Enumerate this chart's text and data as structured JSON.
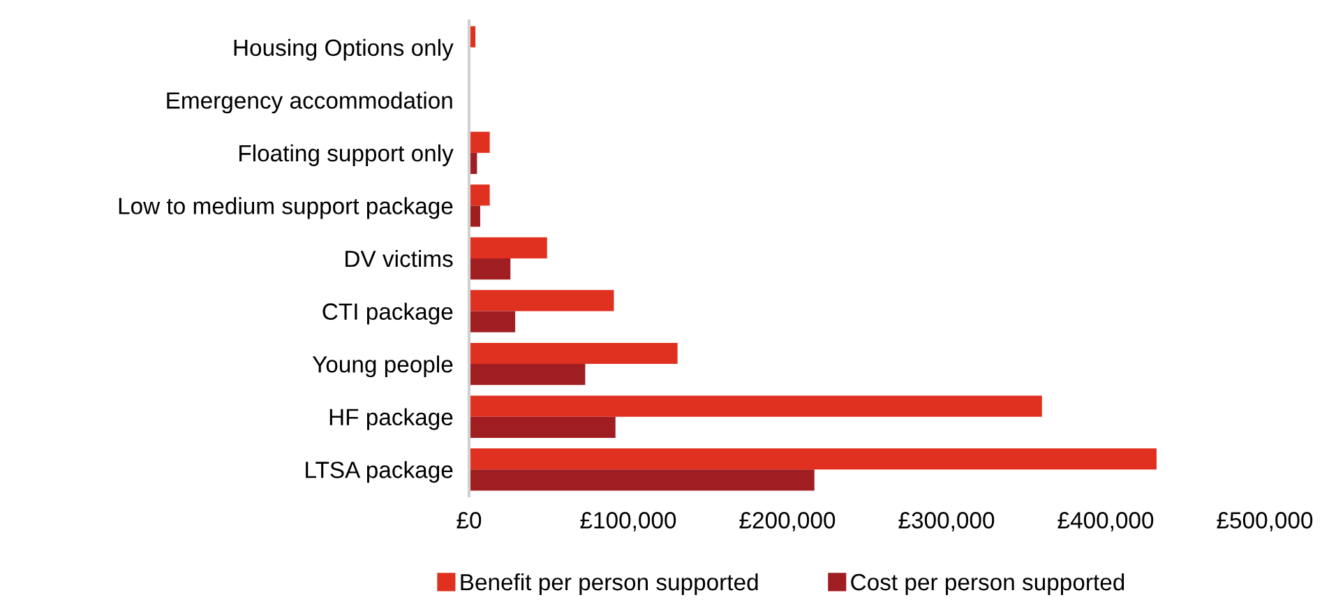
{
  "chart_data": {
    "type": "bar",
    "orientation": "horizontal",
    "categories": [
      "Housing Options only",
      "Emergency accommodation",
      "Floating support only",
      "Low to medium support package",
      "DV victims",
      "CTI package",
      "Young people",
      "HF package",
      "LTSA package"
    ],
    "series": [
      {
        "name": "Benefit per person supported",
        "color": "#e03020",
        "values": [
          4000,
          null,
          13000,
          13000,
          49000,
          91000,
          131000,
          360000,
          432000
        ]
      },
      {
        "name": "Cost per person supported",
        "color": "#a01e22",
        "values": [
          null,
          null,
          5000,
          7000,
          26000,
          29000,
          73000,
          92000,
          217000
        ]
      }
    ],
    "xlim": [
      0,
      500000
    ],
    "xticks": [
      {
        "value": 0,
        "label": "£0"
      },
      {
        "value": 100000,
        "label": "£100,000"
      },
      {
        "value": 200000,
        "label": "£200,000"
      },
      {
        "value": 300000,
        "label": "£300,000"
      },
      {
        "value": 400000,
        "label": "£400,000"
      },
      {
        "value": 500000,
        "label": "£500,000"
      }
    ],
    "grid": false,
    "legend": "bottom"
  }
}
